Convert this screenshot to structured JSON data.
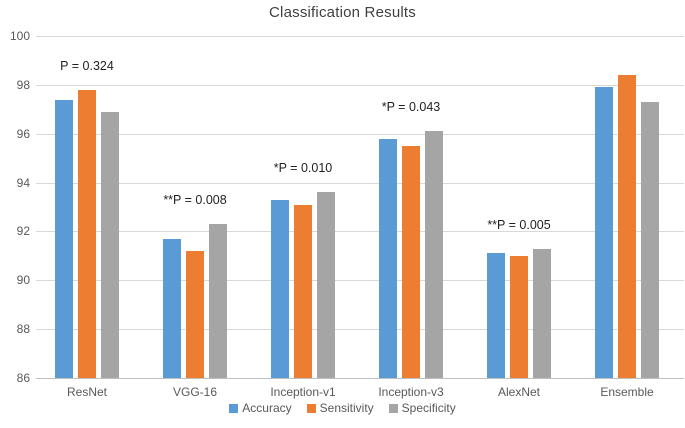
{
  "chart_data": {
    "type": "bar",
    "title": "Classification Results",
    "xlabel": "",
    "ylabel": "",
    "categories": [
      "ResNet",
      "VGG-16",
      "Inception-v1",
      "Inception-v3",
      "AlexNet",
      "Ensemble"
    ],
    "series": [
      {
        "name": "Accuracy",
        "color": "#5B9BD5",
        "values": [
          97.4,
          91.7,
          93.3,
          95.8,
          91.1,
          97.9
        ]
      },
      {
        "name": "Sensitivity",
        "color": "#ED7D31",
        "values": [
          97.8,
          91.2,
          93.1,
          95.5,
          91.0,
          98.4
        ]
      },
      {
        "name": "Specificity",
        "color": "#A5A5A5",
        "values": [
          96.9,
          92.3,
          93.6,
          96.1,
          91.3,
          97.3
        ]
      }
    ],
    "annotations": [
      {
        "category": "ResNet",
        "text": "P = 0.324"
      },
      {
        "category": "VGG-16",
        "text": "**P = 0.008"
      },
      {
        "category": "Inception-v1",
        "text": "*P = 0.010"
      },
      {
        "category": "Inception-v3",
        "text": "*P = 0.043"
      },
      {
        "category": "AlexNet",
        "text": "**P = 0.005"
      }
    ],
    "ylim": [
      86,
      100
    ],
    "yticks": [
      100,
      98,
      96,
      94,
      92,
      90,
      88,
      86
    ],
    "grid": true,
    "legend_position": "bottom",
    "colors": {
      "gridline": "#D9D9D9",
      "axis_line": "#BFBFBF",
      "tick_text": "#595959",
      "title_text": "#3F3F3F",
      "annotation_text": "#1F1F1F"
    }
  }
}
